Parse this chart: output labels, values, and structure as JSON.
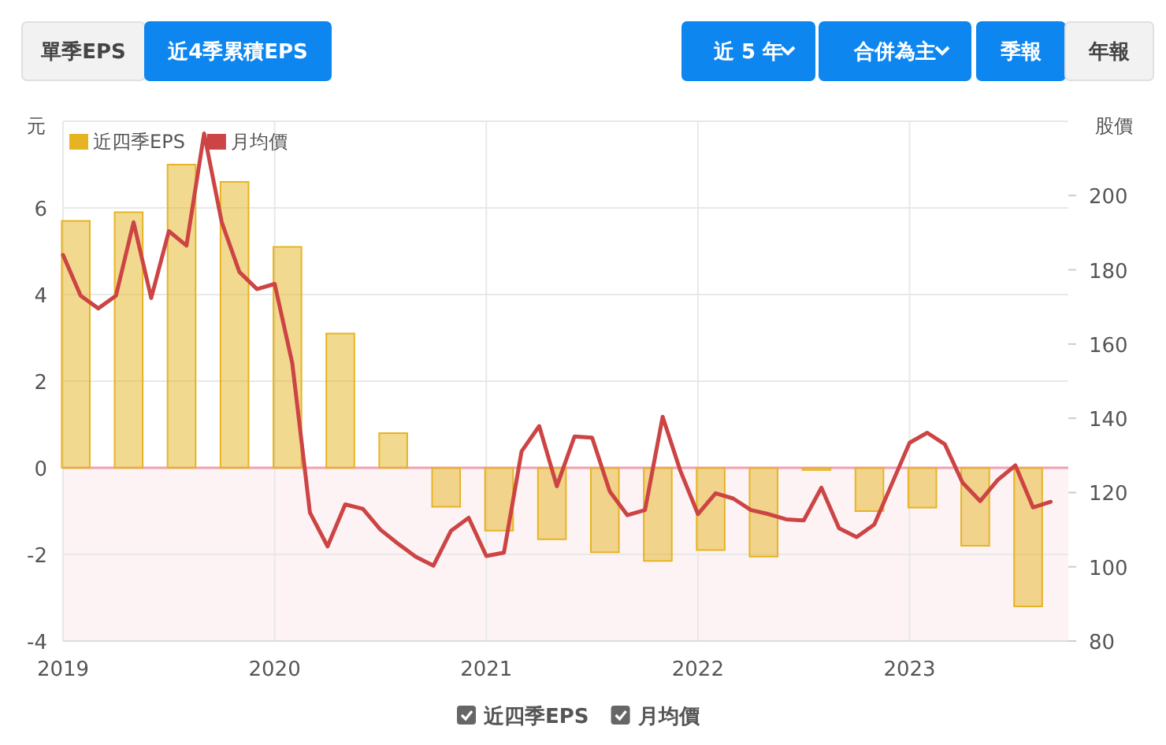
{
  "chart_data": {
    "type": "bar",
    "ylabel": "元",
    "y2label": "股價",
    "annotations": [
      "單季EPS",
      "近4季累積EPS",
      "近 5 年",
      "合併為主",
      "季報",
      "年報"
    ],
    "xlim": [
      "2019-01",
      "2023-10"
    ],
    "xticks": [
      "2019",
      "2020",
      "2021",
      "2022",
      "2023"
    ],
    "ylim": [
      -4,
      8
    ],
    "yticks": [
      -4,
      -2,
      0,
      2,
      4,
      6
    ],
    "y2lim": [
      80,
      220
    ],
    "y2ticks": [
      80,
      100,
      120,
      140,
      160,
      180,
      200
    ],
    "grid": true,
    "legend": "top left",
    "ref_lines": [
      {
        "axis": "y",
        "value": 0,
        "color": "#f0a0b0"
      }
    ],
    "bands": [
      {
        "axis": "y",
        "from": -4,
        "to": 0,
        "color": "#fdf3f5"
      }
    ],
    "series": [
      {
        "name": "近四季EPS",
        "color": "#e6b422",
        "x": [
          "2019-01-23",
          "2019-04-23",
          "2019-07-23",
          "2019-10-23",
          "2020-01-23",
          "2020-04-23",
          "2020-07-23",
          "2020-10-23",
          "2021-01-23",
          "2021-04-23",
          "2021-07-23",
          "2021-10-23",
          "2022-01-23",
          "2022-04-23",
          "2022-07-23",
          "2022-10-23",
          "2023-01-23",
          "2023-04-23",
          "2023-07-23"
        ],
        "values": [
          5.7,
          5.9,
          7.0,
          6.6,
          5.1,
          3.1,
          0.8,
          -0.9,
          -1.45,
          -1.65,
          -1.95,
          -2.15,
          -1.9,
          -2.05,
          -0.05,
          -1.0,
          -0.92,
          -1.8,
          -3.2
        ]
      },
      {
        "name": "月均價",
        "type": "line",
        "axis": "y2",
        "color": "#cc4444",
        "marker": "none",
        "x": [
          "2019-01",
          "2019-02",
          "2019-03",
          "2019-04",
          "2019-05",
          "2019-06",
          "2019-07",
          "2019-08",
          "2019-09",
          "2019-10",
          "2019-11",
          "2019-12",
          "2020-01",
          "2020-02",
          "2020-03",
          "2020-04",
          "2020-05",
          "2020-06",
          "2020-07",
          "2020-08",
          "2020-09",
          "2020-10",
          "2020-11",
          "2020-12",
          "2021-01",
          "2021-02",
          "2021-03",
          "2021-04",
          "2021-05",
          "2021-06",
          "2021-07",
          "2021-08",
          "2021-09",
          "2021-10",
          "2021-11",
          "2021-12",
          "2022-01",
          "2022-02",
          "2022-03",
          "2022-04",
          "2022-05",
          "2022-06",
          "2022-07",
          "2022-08",
          "2022-09",
          "2022-10",
          "2022-11",
          "2022-12",
          "2023-01",
          "2023-02",
          "2023-03",
          "2023-04",
          "2023-05",
          "2023-06",
          "2023-07",
          "2023-08",
          "2023-09"
        ],
        "values": [
          184,
          173,
          169.6,
          173,
          192.8,
          172.4,
          190.4,
          186.5,
          216.7,
          192.8,
          179.4,
          174.8,
          176.2,
          154.8,
          114.6,
          105.5,
          116.8,
          115.6,
          110,
          106.2,
          102.7,
          100.3,
          109.7,
          113.2,
          102.9,
          103.8,
          131.1,
          137.9,
          121.7,
          135.1,
          134.8,
          120.3,
          113.9,
          115.3,
          140.4,
          125.9,
          114.2,
          119.8,
          118.4,
          115.3,
          114.2,
          112.8,
          112.5,
          121.3,
          110.4,
          108,
          111.4,
          122.4,
          133.4,
          136.1,
          133,
          122.7,
          117.7,
          123.4,
          127.3,
          116,
          117.5
        ]
      }
    ]
  }
}
